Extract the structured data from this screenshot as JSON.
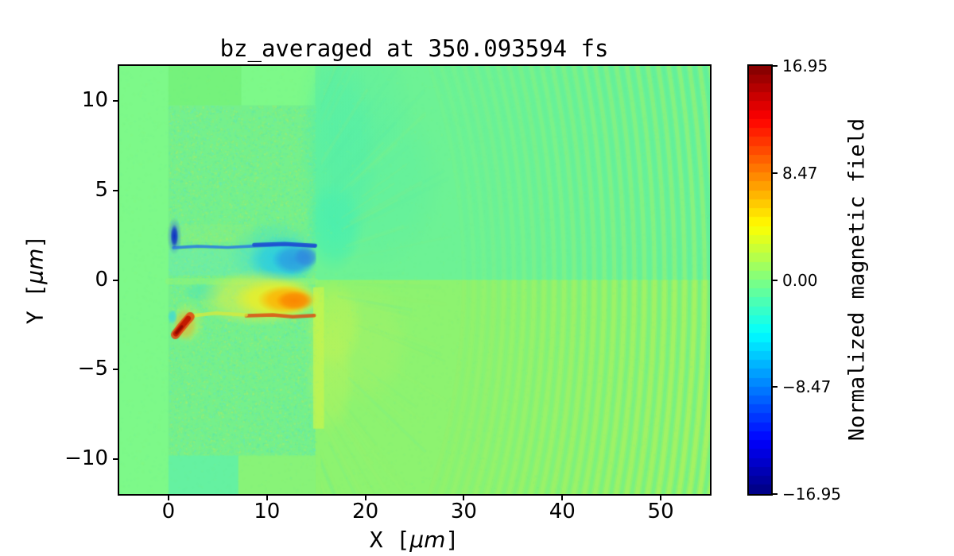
{
  "chart_data": {
    "type": "heatmap",
    "title": "bz_averaged at 350.093594 fs",
    "xlabel": {
      "pre": "X [",
      "unit": "μm",
      "post": "]"
    },
    "ylabel": {
      "pre": "Y [",
      "unit": "μm",
      "post": "]"
    },
    "xlim": [
      -5,
      55
    ],
    "ylim": [
      -11.95,
      11.95
    ],
    "xticks": [
      {
        "v": 0,
        "t": "0"
      },
      {
        "v": 10,
        "t": "10"
      },
      {
        "v": 20,
        "t": "20"
      },
      {
        "v": 30,
        "t": "30"
      },
      {
        "v": 40,
        "t": "40"
      },
      {
        "v": 50,
        "t": "50"
      }
    ],
    "yticks": [
      {
        "v": 10,
        "t": "10"
      },
      {
        "v": 5,
        "t": "5"
      },
      {
        "v": 0,
        "t": "0"
      },
      {
        "v": -5,
        "t": "−5"
      },
      {
        "v": -10,
        "t": "−10"
      }
    ],
    "colorbar": {
      "label": "Normalized magnetic field",
      "vmin": -16.95,
      "vmax": 16.95,
      "ticks": [
        {
          "v": 16.95,
          "t": "16.95"
        },
        {
          "v": 8.47,
          "t": "8.47"
        },
        {
          "v": 0.0,
          "t": "0.00"
        },
        {
          "v": -8.47,
          "t": "−8.47"
        },
        {
          "v": -16.95,
          "t": "−16.95"
        }
      ],
      "colormap": "jet",
      "levels": 48,
      "stops": [
        [
          0.0,
          "#00007f"
        ],
        [
          0.125,
          "#0000ff"
        ],
        [
          0.375,
          "#00ffff"
        ],
        [
          0.625,
          "#ffff00"
        ],
        [
          0.875,
          "#ff0000"
        ],
        [
          1.0,
          "#7f0000"
        ]
      ]
    },
    "features": [
      {
        "t": "fill",
        "c": "#7df989"
      },
      {
        "t": "rect",
        "x": [
          14.9,
          55
        ],
        "y": [
          0,
          11.95
        ],
        "c": "#6df295",
        "a": 1
      },
      {
        "t": "rect",
        "x": [
          14.9,
          55
        ],
        "y": [
          -11.95,
          0
        ],
        "c": "#8df370",
        "a": 1
      },
      {
        "t": "speckle",
        "x": [
          0,
          14.9
        ],
        "y": [
          -9.8,
          9.75
        ],
        "base": "#74ef8c",
        "ba": 0.92,
        "dots": [
          "#5de9a7",
          "#a6ee69",
          "#63ebbc",
          "#90ee78"
        ],
        "n": 9500,
        "s": 2
      },
      {
        "t": "rect",
        "x": [
          0,
          7.4
        ],
        "y": [
          9.75,
          11.95
        ],
        "c": "#74f17b",
        "a": 0.9
      },
      {
        "t": "rect",
        "x": [
          0,
          7.1
        ],
        "y": [
          -11.95,
          -9.8
        ],
        "c": "#63f0a4",
        "a": 0.9
      },
      {
        "t": "rect",
        "x": [
          7.1,
          14.9
        ],
        "y": [
          -11.95,
          -9.8
        ],
        "c": "#8af276",
        "a": 0.85
      },
      {
        "t": "blob",
        "cx": 17.3,
        "cy": 7,
        "rx": 4,
        "ry": 6,
        "c": "#49eeb0",
        "a": 0.5
      },
      {
        "t": "blob",
        "cx": 16.8,
        "cy": 3,
        "rx": 3,
        "ry": 2.6,
        "c": "#3defb8",
        "a": 0.6
      },
      {
        "t": "blob",
        "cx": 21,
        "cy": 5.5,
        "rx": 7,
        "ry": 5,
        "c": "#55efa9",
        "a": 0.35
      },
      {
        "t": "blob",
        "cx": 19,
        "cy": 10,
        "rx": 6,
        "ry": 3.5,
        "c": "#55efa9",
        "a": 0.3
      },
      {
        "t": "rect",
        "x": [
          14.7,
          15.8
        ],
        "y": [
          -8.3,
          -0.4
        ],
        "c": "#c9f54b",
        "a": 0.7
      },
      {
        "t": "blob",
        "cx": 16.8,
        "cy": -2.5,
        "rx": 3,
        "ry": 2.6,
        "c": "#c9f54b",
        "a": 0.5
      },
      {
        "t": "blob",
        "cx": 16.4,
        "cy": -5.5,
        "rx": 2.6,
        "ry": 3.2,
        "c": "#c4f455",
        "a": 0.4
      },
      {
        "t": "blob",
        "cx": 19.8,
        "cy": -3.5,
        "rx": 5,
        "ry": 3.6,
        "c": "#b8f261",
        "a": 0.3
      },
      {
        "t": "ripples",
        "cx": 8,
        "cy": 0,
        "r0": 22,
        "r1": 48.5,
        "n": 27,
        "clipx": 15.9,
        "cUp": "#a8f164",
        "cDn": "#c6f352",
        "cGap": "#50eda6",
        "aMax": 0.5
      },
      {
        "t": "streaks",
        "cx": 8,
        "cy": 0,
        "r0": 9,
        "r1": 21.5,
        "n": 80,
        "cols": [
          "#aaf06a",
          "#58eda9"
        ],
        "a": 0.09,
        "clipx": 15.5
      },
      {
        "t": "noise",
        "n": 7500,
        "cols": [
          "#86f57f",
          "#6cf19b",
          "#9cf46d",
          "#64efa6"
        ],
        "a": 0.1,
        "s": 2
      },
      {
        "t": "rect",
        "x": [
          0,
          9.2
        ],
        "y": [
          0.25,
          1.7
        ],
        "c": "#68ecc0",
        "a": 0.35
      },
      {
        "t": "rect",
        "x": [
          0,
          8.6
        ],
        "y": [
          2.1,
          3.1
        ],
        "c": "#97f277",
        "a": 0.28
      },
      {
        "t": "stroke",
        "p": [
          [
            0,
            -0.08
          ],
          [
            14.9,
            -0.08
          ]
        ],
        "w": 0.35,
        "c": "#93f574",
        "a": 0.5
      },
      {
        "t": "blob",
        "cx": 3.5,
        "cy": -0.7,
        "rx": 2.2,
        "ry": 0.55,
        "c": "#41e2c3",
        "a": 0.45
      },
      {
        "t": "blob",
        "cx": 10.8,
        "cy": 1.35,
        "rx": 4.8,
        "ry": 2,
        "c": "#37dcd8",
        "a": 0.45,
        "clip": [
          -5,
          15.0
        ]
      },
      {
        "t": "blob",
        "cx": 11.6,
        "cy": 1.15,
        "rx": 3.6,
        "ry": 1.3,
        "c": "#22c8ec",
        "a": 0.85,
        "clip": [
          -5,
          15.0
        ]
      },
      {
        "t": "blob",
        "cx": 12.8,
        "cy": 1.15,
        "rx": 2.3,
        "ry": 0.85,
        "c": "#2b93e2",
        "a": 0.8,
        "clip": [
          -5,
          15.0
        ]
      },
      {
        "t": "blob",
        "cx": 14.0,
        "cy": 1.3,
        "rx": 1.3,
        "ry": 0.6,
        "c": "#2f7fe0",
        "a": 0.7,
        "clip": [
          -5,
          15.0
        ]
      },
      {
        "t": "stroke",
        "p": [
          [
            0.5,
            1.8
          ],
          [
            3,
            1.88
          ],
          [
            6,
            1.82
          ],
          [
            9,
            1.9
          ],
          [
            11.8,
            1.96
          ],
          [
            14.9,
            1.88
          ]
        ],
        "w": 0.16,
        "c": "#2f80dc",
        "a": 0.9
      },
      {
        "t": "stroke",
        "p": [
          [
            8.7,
            1.96
          ],
          [
            11.8,
            2.02
          ],
          [
            14.9,
            1.92
          ]
        ],
        "w": 0.22,
        "c": "#1c4fd0",
        "a": 0.9
      },
      {
        "t": "blob",
        "cx": 0.6,
        "cy": 2.45,
        "rx": 0.75,
        "ry": 1.05,
        "c": "#2f6fe0",
        "a": 0.55
      },
      {
        "t": "blob",
        "cx": 0.6,
        "cy": 2.45,
        "rx": 0.4,
        "ry": 0.65,
        "c": "#0a2ac4",
        "a": 0.95
      },
      {
        "t": "blob",
        "cx": 9.2,
        "cy": -1.0,
        "rx": 6.3,
        "ry": 1.6,
        "c": "#dff046",
        "a": 0.7
      },
      {
        "t": "blob",
        "cx": 11.0,
        "cy": -1.05,
        "rx": 4.5,
        "ry": 1.15,
        "c": "#f2ee1f",
        "a": 0.85
      },
      {
        "t": "blob",
        "cx": 12.0,
        "cy": -1.1,
        "rx": 3.0,
        "ry": 0.8,
        "c": "#ffab00",
        "a": 0.9,
        "clip": [
          -5,
          15.05
        ]
      },
      {
        "t": "blob",
        "cx": 12.8,
        "cy": -1.15,
        "rx": 1.9,
        "ry": 0.55,
        "c": "#fb8200",
        "a": 0.9,
        "clip": [
          -5,
          15.05
        ]
      },
      {
        "t": "stroke",
        "p": [
          [
            7.9,
            -2.0
          ],
          [
            10.6,
            -1.95
          ],
          [
            12.6,
            -2.05
          ],
          [
            14.8,
            -1.98
          ]
        ],
        "w": 0.2,
        "c": "#e0430e",
        "a": 0.8
      },
      {
        "t": "stroke",
        "p": [
          [
            2.4,
            -2.0
          ],
          [
            4.8,
            -1.85
          ],
          [
            7.9,
            -1.95
          ]
        ],
        "w": 0.2,
        "c": "#d8e93c",
        "a": 0.75
      },
      {
        "t": "blob",
        "cx": 1.9,
        "cy": -2.4,
        "rx": 1.8,
        "ry": 1.2,
        "c": "#e2ee3a",
        "a": 0.4
      },
      {
        "t": "blob",
        "cx": 1.7,
        "cy": -2.5,
        "rx": 1.2,
        "ry": 0.9,
        "c": "#f2a024",
        "a": 0.5
      },
      {
        "t": "stroke",
        "p": [
          [
            0.7,
            -3.05
          ],
          [
            1.2,
            -2.7
          ],
          [
            1.8,
            -2.3
          ],
          [
            2.2,
            -2.05
          ]
        ],
        "w": 0.5,
        "c": "#e04410",
        "a": 0.85
      },
      {
        "t": "stroke",
        "p": [
          [
            0.75,
            -3.0
          ],
          [
            1.3,
            -2.62
          ],
          [
            2.0,
            -2.15
          ]
        ],
        "w": 0.3,
        "c": "#c01600",
        "a": 0.95
      },
      {
        "t": "stroke",
        "p": [
          [
            0.8,
            -2.95
          ],
          [
            1.35,
            -2.6
          ]
        ],
        "w": 0.15,
        "c": "#8c0800",
        "a": 0.9
      },
      {
        "t": "blob",
        "cx": 0.4,
        "cy": -2.05,
        "rx": 0.5,
        "ry": 0.42,
        "c": "#38d8de",
        "a": 0.8
      }
    ]
  }
}
